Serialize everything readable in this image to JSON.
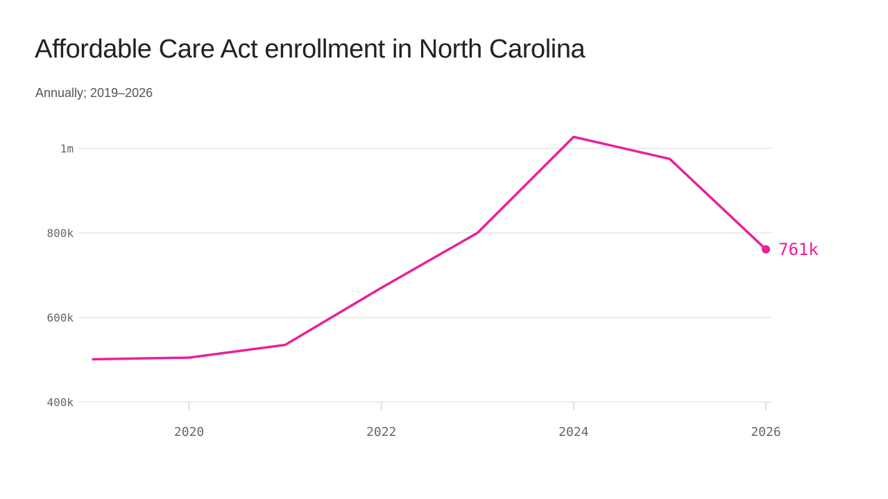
{
  "chart_data": {
    "type": "line",
    "title": "Affordable Care Act enrollment in North Carolina",
    "subtitle": "Annually; 2019–2026",
    "xlabel": "",
    "ylabel": "",
    "x": [
      2019,
      2020,
      2021,
      2022,
      2023,
      2024,
      2025,
      2026
    ],
    "series": [
      {
        "values": [
          501000,
          505000,
          535000,
          670000,
          800000,
          1027000,
          975000,
          761000
        ],
        "color": "#e8219b"
      }
    ],
    "xlim": [
      2019,
      2026
    ],
    "ylim": [
      400000,
      1000000
    ],
    "x_ticks": [
      {
        "value": 2020,
        "label": "2020"
      },
      {
        "value": 2022,
        "label": "2022"
      },
      {
        "value": 2024,
        "label": "2024"
      },
      {
        "value": 2026,
        "label": "2026"
      }
    ],
    "y_ticks": [
      {
        "value": 400000,
        "label": "400k"
      },
      {
        "value": 600000,
        "label": "600k"
      },
      {
        "value": 800000,
        "label": "800k"
      },
      {
        "value": 1000000,
        "label": "1m"
      }
    ],
    "grid": true,
    "legend": "none",
    "end_label": "761k",
    "colors": {
      "line": "#e8219b",
      "grid": "#e0e0e0",
      "axis_text": "#666666"
    }
  }
}
